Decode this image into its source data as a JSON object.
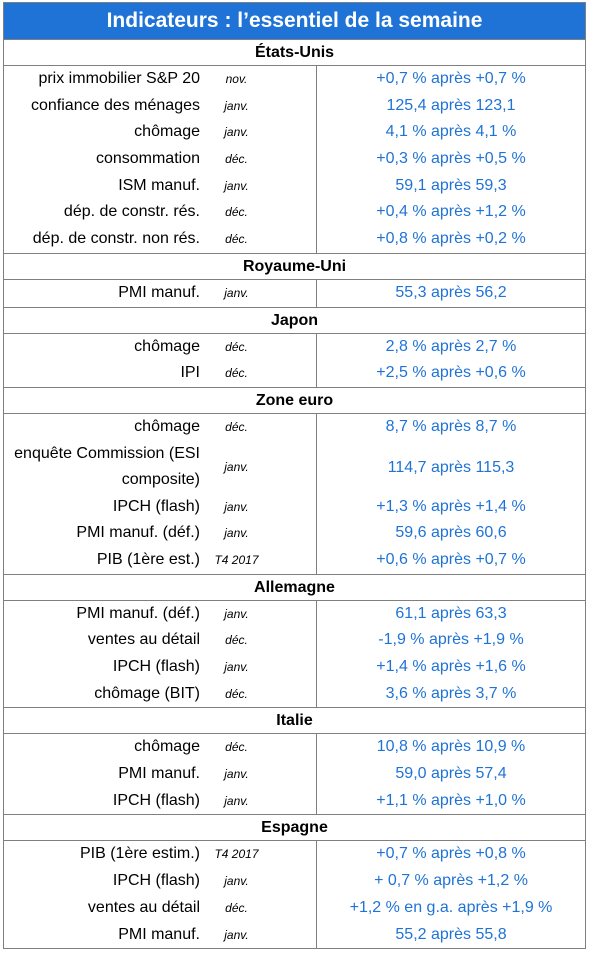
{
  "title": "Indicateurs : l’essentiel de la semaine",
  "sections": [
    {
      "country": "États-Unis",
      "rows": [
        {
          "label": "prix immobilier S&P 20",
          "period": "nov.",
          "value": "+0,7 % après +0,7 %"
        },
        {
          "label": "confiance des ménages",
          "period": "janv.",
          "value": "125,4 après 123,1"
        },
        {
          "label": "chômage",
          "period": "janv.",
          "value": "4,1 % après 4,1 %"
        },
        {
          "label": "consommation",
          "period": "déc.",
          "value": "+0,3 % après +0,5 %"
        },
        {
          "label": "ISM manuf.",
          "period": "janv.",
          "value": "59,1 après 59,3"
        },
        {
          "label": "dép. de constr. rés.",
          "period": "déc.",
          "value": "+0,4 % après +1,2 %"
        },
        {
          "label": "dép. de constr. non rés.",
          "period": "déc.",
          "value": "+0,8 % après +0,2 %"
        }
      ]
    },
    {
      "country": "Royaume-Uni",
      "rows": [
        {
          "label": "PMI manuf.",
          "period": "janv.",
          "value": "55,3 après 56,2"
        }
      ]
    },
    {
      "country": "Japon",
      "rows": [
        {
          "label": "chômage",
          "period": "déc.",
          "value": "2,8 % après 2,7 %"
        },
        {
          "label": "IPI",
          "period": "déc.",
          "value": "+2,5 % après +0,6 %"
        }
      ]
    },
    {
      "country": "Zone euro",
      "rows": [
        {
          "label": "chômage",
          "period": "déc.",
          "value": "8,7 % après 8,7 %"
        },
        {
          "label": "enquête Commission (ESI composite)",
          "period": "janv.",
          "value": "114,7 après 115,3",
          "two_lines": true
        },
        {
          "label": "IPCH (flash)",
          "period": "janv.",
          "value": "+1,3 % après +1,4 %"
        },
        {
          "label": "PMI manuf. (déf.)",
          "period": "janv.",
          "value": "59,6 après 60,6"
        },
        {
          "label": "PIB (1ère est.)",
          "period": "T4 2017",
          "value": "+0,6 % après +0,7 %"
        }
      ]
    },
    {
      "country": "Allemagne",
      "rows": [
        {
          "label": "PMI manuf. (déf.)",
          "period": "janv.",
          "value": "61,1 après 63,3"
        },
        {
          "label": "ventes au détail",
          "period": "déc.",
          "value": "-1,9 % après +1,9 %"
        },
        {
          "label": "IPCH (flash)",
          "period": "janv.",
          "value": "+1,4 % après +1,6 %"
        },
        {
          "label": "chômage (BIT)",
          "period": "déc.",
          "value": "3,6 % après 3,7 %"
        }
      ]
    },
    {
      "country": "Italie",
      "rows": [
        {
          "label": "chômage",
          "period": "déc.",
          "value": "10,8 % après 10,9 %"
        },
        {
          "label": "PMI manuf.",
          "period": "janv.",
          "value": "59,0 après 57,4"
        },
        {
          "label": "IPCH (flash)",
          "period": "janv.",
          "value": "+1,1 % après +1,0 %"
        }
      ]
    },
    {
      "country": "Espagne",
      "rows": [
        {
          "label": "PIB (1ère estim.)",
          "period": "T4 2017",
          "value": "+0,7 % après +0,8 %"
        },
        {
          "label": "IPCH (flash)",
          "period": "janv.",
          "value": "+ 0,7 % après +1,2 %"
        },
        {
          "label": "ventes au détail",
          "period": "déc.",
          "value": "+1,2 % en g.a. après +1,9 %"
        },
        {
          "label": "PMI manuf.",
          "period": "janv.",
          "value": "55,2 après 55,8"
        }
      ]
    }
  ]
}
